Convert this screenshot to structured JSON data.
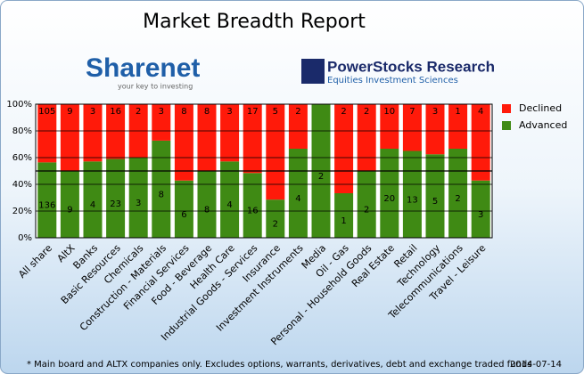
{
  "header": {
    "sharenet_logo": "Sharenet",
    "sharenet_tagline": "your key to investing",
    "powerstocks_logo": "PowerStocks Research",
    "powerstocks_tagline": "Equities Investment Sciences"
  },
  "chart_data": {
    "type": "stacked_percent_bar",
    "title": "Market Breadth Report",
    "categories": [
      "All share",
      "AltX",
      "Banks",
      "Basic Resources",
      "Chemicals",
      "Construction - Materials",
      "Financial Services",
      "Food - Beverage",
      "Health Care",
      "Industrial Goods - Services",
      "Insurance",
      "Investment Instruments",
      "Media",
      "Oil - Gas",
      "Personal - Household Goods",
      "Real Estate",
      "Retail",
      "Technology",
      "Telecommunications",
      "Travel - Leisure"
    ],
    "series": [
      {
        "name": "Advanced",
        "color": "#3f8a14",
        "values": [
          136,
          9,
          4,
          23,
          3,
          8,
          6,
          8,
          4,
          16,
          2,
          4,
          2,
          1,
          2,
          20,
          13,
          5,
          2,
          3
        ]
      },
      {
        "name": "Declined",
        "color": "#ff1a0a",
        "values": [
          105,
          9,
          3,
          16,
          2,
          3,
          8,
          8,
          3,
          17,
          5,
          2,
          0,
          2,
          2,
          10,
          7,
          3,
          1,
          4
        ]
      }
    ],
    "ylim": [
      0,
      100
    ],
    "yticks": [
      {
        "value": 0,
        "label": "0%"
      },
      {
        "value": 20,
        "label": "20%"
      },
      {
        "value": 40,
        "label": "40%"
      },
      {
        "value": 60,
        "label": "60%"
      },
      {
        "value": 80,
        "label": "80%"
      },
      {
        "value": 100,
        "label": "100%"
      }
    ],
    "reference_line": 50,
    "grid": true,
    "legend": "right",
    "footnote": "* Main board and ALTX companies only. Excludes options, warrants, derivatives, debt and exchange traded funds",
    "date": "2014-07-14"
  }
}
